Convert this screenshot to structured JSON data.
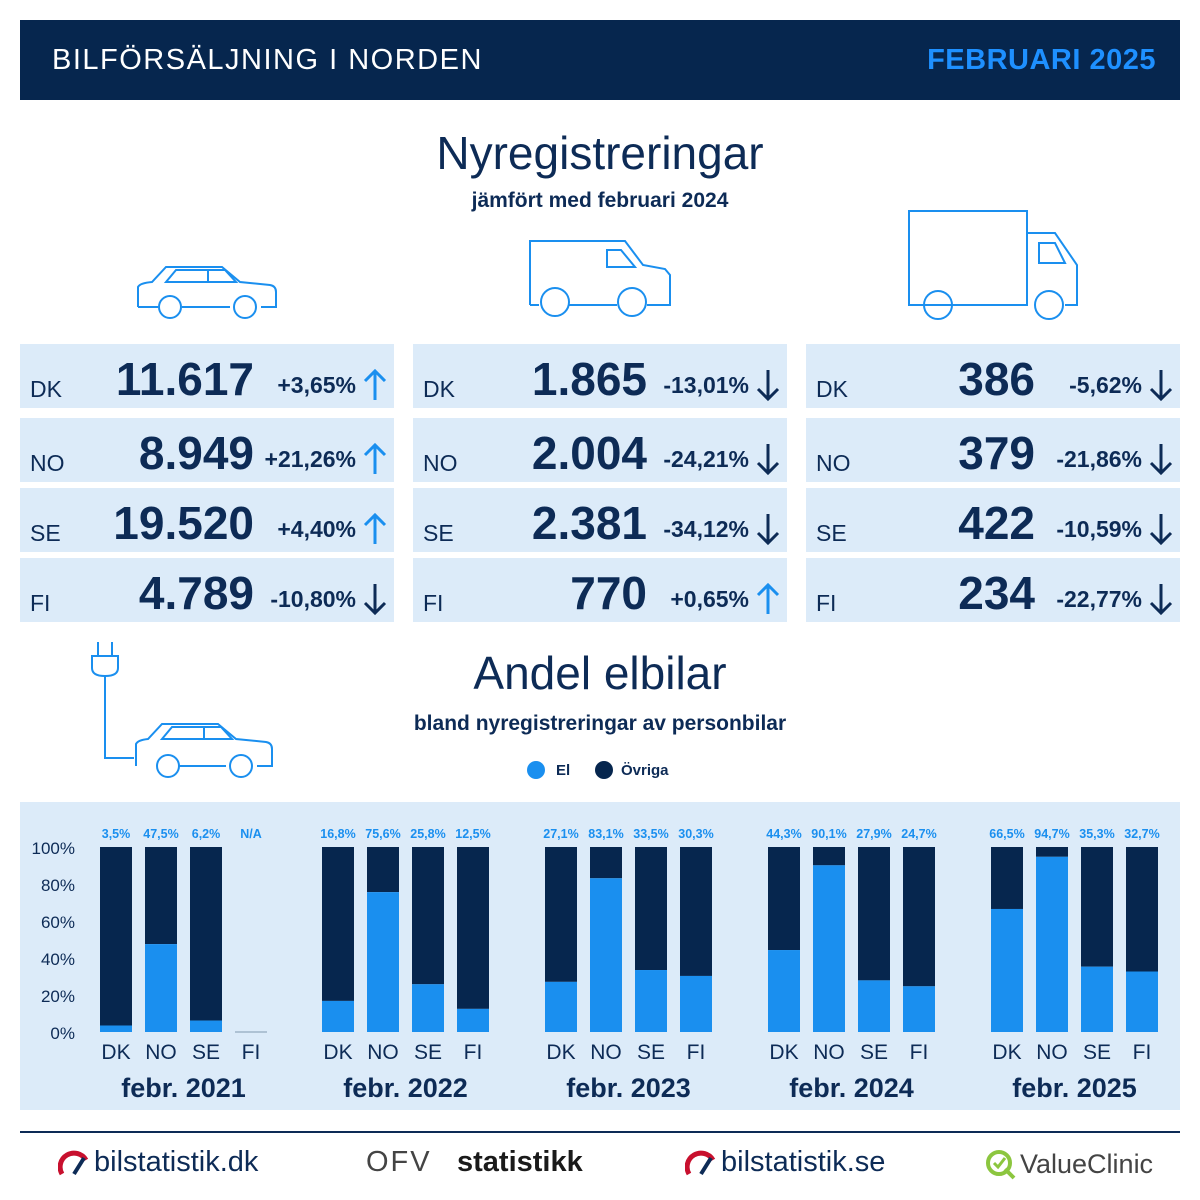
{
  "header": {
    "title": "BILFÖRSÄLJNING I NORDEN",
    "date": "FEBRUARI 2025"
  },
  "registrations": {
    "title": "Nyregistreringar",
    "subtitle": "jämfört med februari 2024",
    "vehicle_icons": [
      "car-icon",
      "van-icon",
      "truck-icon"
    ],
    "columns": [
      {
        "vehicle": "car",
        "rows": [
          {
            "country": "DK",
            "value": "11.617",
            "change": "+3,65%",
            "direction": "up"
          },
          {
            "country": "NO",
            "value": "8.949",
            "change": "+21,26%",
            "direction": "up"
          },
          {
            "country": "SE",
            "value": "19.520",
            "change": "+4,40%",
            "direction": "up"
          },
          {
            "country": "FI",
            "value": "4.789",
            "change": "-10,80%",
            "direction": "down"
          }
        ]
      },
      {
        "vehicle": "van",
        "rows": [
          {
            "country": "DK",
            "value": "1.865",
            "change": "-13,01%",
            "direction": "down"
          },
          {
            "country": "NO",
            "value": "2.004",
            "change": "-24,21%",
            "direction": "down"
          },
          {
            "country": "SE",
            "value": "2.381",
            "change": "-34,12%",
            "direction": "down"
          },
          {
            "country": "FI",
            "value": "770",
            "change": "+0,65%",
            "direction": "up"
          }
        ]
      },
      {
        "vehicle": "truck",
        "rows": [
          {
            "country": "DK",
            "value": "386",
            "change": "-5,62%",
            "direction": "down"
          },
          {
            "country": "NO",
            "value": "379",
            "change": "-21,86%",
            "direction": "down"
          },
          {
            "country": "SE",
            "value": "422",
            "change": "-10,59%",
            "direction": "down"
          },
          {
            "country": "FI",
            "value": "234",
            "change": "-22,77%",
            "direction": "down"
          }
        ]
      }
    ]
  },
  "ev_share": {
    "title": "Andel elbilar",
    "subtitle": "bland nyregistreringar av personbilar",
    "icon": "ev-car-plug-icon"
  },
  "chart_data": {
    "type": "bar",
    "stacked": true,
    "legend": [
      "El",
      "Övriga"
    ],
    "legend_position": "top",
    "colors": {
      "El": "#1a8fef",
      "Övriga": "#06264e",
      "up": "#1a8fef"
    },
    "ylim": [
      0,
      100
    ],
    "yticks": [
      "0%",
      "20%",
      "40%",
      "60%",
      "80%",
      "100%"
    ],
    "groups": [
      {
        "label": "febr. 2021",
        "bars": [
          {
            "country": "DK",
            "el": 3.5,
            "label": "3,5%"
          },
          {
            "country": "NO",
            "el": 47.5,
            "label": "47,5%"
          },
          {
            "country": "SE",
            "el": 6.2,
            "label": "6,2%"
          },
          {
            "country": "FI",
            "el": null,
            "label": "N/A"
          }
        ]
      },
      {
        "label": "febr. 2022",
        "bars": [
          {
            "country": "DK",
            "el": 16.8,
            "label": "16,8%"
          },
          {
            "country": "NO",
            "el": 75.6,
            "label": "75,6%"
          },
          {
            "country": "SE",
            "el": 25.8,
            "label": "25,8%"
          },
          {
            "country": "FI",
            "el": 12.5,
            "label": "12,5%"
          }
        ]
      },
      {
        "label": "febr. 2023",
        "bars": [
          {
            "country": "DK",
            "el": 27.1,
            "label": "27,1%"
          },
          {
            "country": "NO",
            "el": 83.1,
            "label": "83,1%"
          },
          {
            "country": "SE",
            "el": 33.5,
            "label": "33,5%"
          },
          {
            "country": "FI",
            "el": 30.3,
            "label": "30,3%"
          }
        ]
      },
      {
        "label": "febr. 2024",
        "bars": [
          {
            "country": "DK",
            "el": 44.3,
            "label": "44,3%"
          },
          {
            "country": "NO",
            "el": 90.1,
            "label": "90,1%"
          },
          {
            "country": "SE",
            "el": 27.9,
            "label": "27,9%"
          },
          {
            "country": "FI",
            "el": 24.7,
            "label": "24,7%"
          }
        ]
      },
      {
        "label": "febr. 2025",
        "bars": [
          {
            "country": "DK",
            "el": 66.5,
            "label": "66,5%"
          },
          {
            "country": "NO",
            "el": 94.7,
            "label": "94,7%"
          },
          {
            "country": "SE",
            "el": 35.3,
            "label": "35,3%"
          },
          {
            "country": "FI",
            "el": 32.7,
            "label": "32,7%"
          }
        ]
      }
    ]
  },
  "footer": {
    "logos": [
      {
        "text": "bilstatistik.dk",
        "icon": "gauge-logo-icon"
      },
      {
        "text": "statistikk",
        "icon": "ofv-logo-icon",
        "prefix": "OFV"
      },
      {
        "text": "bilstatistik.se",
        "icon": "gauge-logo-icon"
      },
      {
        "text": "ValueClinic",
        "icon": "valueclinic-logo-icon"
      }
    ]
  }
}
